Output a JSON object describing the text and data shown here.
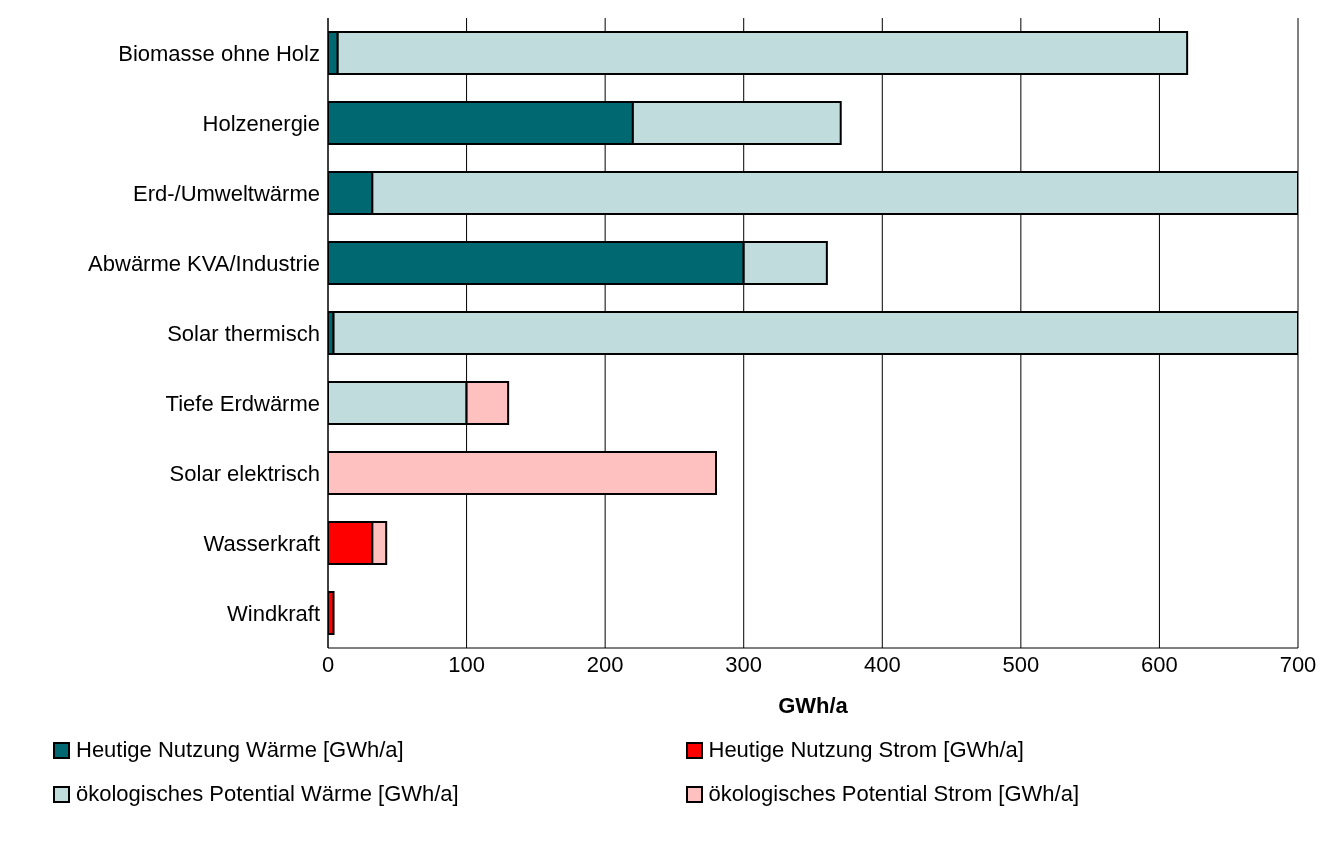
{
  "chart_data": {
    "type": "bar",
    "orientation": "horizontal",
    "stacked": true,
    "xlabel": "GWh/a",
    "categories": [
      "Biomasse ohne Holz",
      "Holzenergie",
      "Erd-/Umweltwärme",
      "Abwärme KVA/Industrie",
      "Solar thermisch",
      "Tiefe Erdwärme",
      "Solar elektrisch",
      "Wasserkraft",
      "Windkraft"
    ],
    "series": [
      {
        "name": "Heutige Nutzung Wärme [GWh/a]",
        "color": "#006870",
        "values": [
          7,
          220,
          32,
          300,
          4,
          null,
          null,
          null,
          null
        ]
      },
      {
        "name": "ökologisches Potential Wärme [GWh/a]",
        "color": "#c0dcdc",
        "values": [
          613,
          150,
          668,
          60,
          696,
          100,
          null,
          null,
          null
        ]
      },
      {
        "name": "Heutige Nutzung Strom [GWh/a]",
        "color": "#ff0000",
        "values": [
          null,
          null,
          null,
          null,
          null,
          null,
          null,
          32,
          4
        ]
      },
      {
        "name": "ökologisches Potential Strom [GWh/a]",
        "color": "#ffc0c0",
        "values": [
          null,
          null,
          null,
          null,
          null,
          30,
          280,
          10,
          null
        ]
      }
    ],
    "xlim": [
      0,
      700
    ],
    "xticks": [
      0,
      100,
      200,
      300,
      400,
      500,
      600,
      700
    ],
    "grid": "x",
    "legend": "bottom"
  }
}
